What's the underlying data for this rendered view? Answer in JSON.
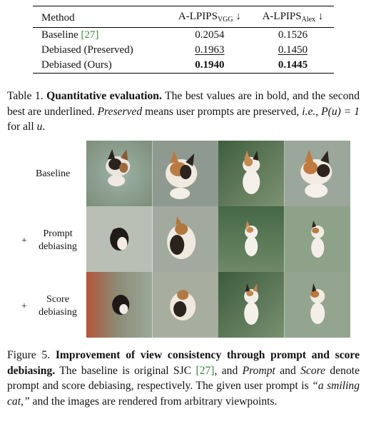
{
  "table": {
    "headers": {
      "method": "Method",
      "col1_main": "A-LPIPS",
      "col1_sub": "VGG",
      "col1_arrow": "↓",
      "col2_main": "A-LPIPS",
      "col2_sub": "Alex",
      "col2_arrow": "↓"
    },
    "rows": [
      {
        "method": "Baseline ",
        "cite": "[27]",
        "vgg": "0.2054",
        "alex": "0.1526"
      },
      {
        "method": "Debiased (Preserved)",
        "vgg": "0.1963",
        "alex": "0.1450"
      },
      {
        "method": "Debiased (Ours)",
        "vgg": "0.1940",
        "alex": "0.1445"
      }
    ]
  },
  "table_caption": {
    "label": "Table 1. ",
    "bold": "Quantitative evaluation.",
    "t1": " The best values are in bold, and the second best are underlined. ",
    "italic1": "Preserved",
    "t2": " means user prompts are preserved, ",
    "italic2": "i.e.",
    "t3": ", ",
    "math": "P(u) = 1",
    "t4": " for all ",
    "math2": "u",
    "t5": "."
  },
  "figure": {
    "rows": [
      {
        "plus": "",
        "label": "Baseline"
      },
      {
        "plus": "+",
        "label": "Prompt debiasing"
      },
      {
        "plus": "+",
        "label": "Score debiasing"
      }
    ]
  },
  "figure_caption": {
    "label": "Figure 5. ",
    "bold": "Improvement of view consistency through prompt and score debiasing.",
    "t1": " The baseline is original SJC ",
    "cite": "[27]",
    "t2": ", and ",
    "italic1": "Prompt",
    "t3": " and ",
    "italic2": "Score",
    "t4": " denote prompt and score debiasing, respectively. The given user prompt is ",
    "quote": "“a smiling cat,”",
    "t5": " and the images are rendered from arbitrary viewpoints."
  },
  "colors": {
    "cite": "#3a8a3a"
  }
}
